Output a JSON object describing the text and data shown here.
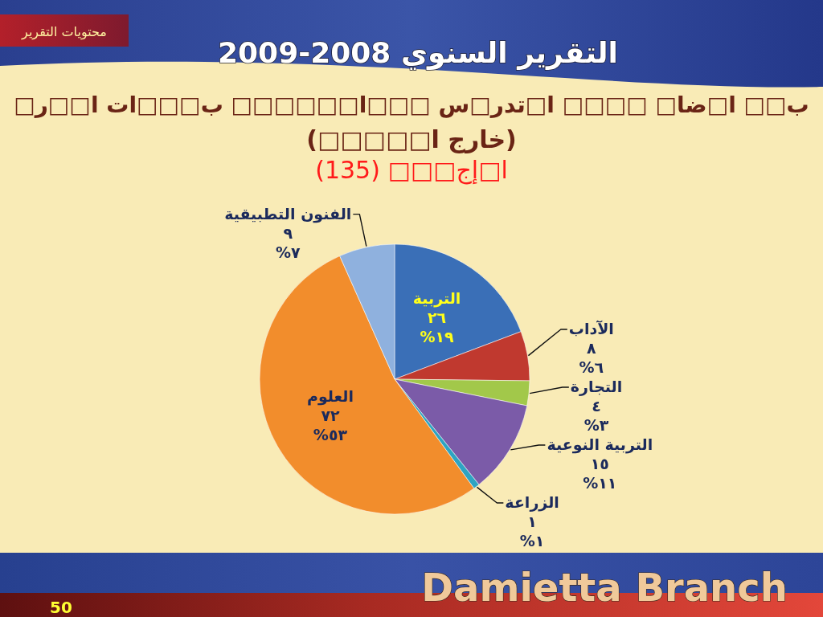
{
  "chart_data": {
    "type": "pie",
    "title": "ب□□ ا□ضا□ □□□□ ا□تدر□س □□□ا□□□□□□ ب□□□ات ا□□ر□\n(خارج ا□□□□□)",
    "subtitle": "ا□إج□□□ (135)",
    "categories": [
      "التربية",
      "الآداب",
      "التجارة",
      "التربية النوعية",
      "الزراعة",
      "العلوم",
      "الفنون التطبيقية"
    ],
    "values": [
      26,
      8,
      4,
      15,
      1,
      72,
      9
    ],
    "colors": [
      "#3a6fb7",
      "#c0392f",
      "#a2c84a",
      "#7b5ba8",
      "#2ea4c2",
      "#f28d2c",
      "#8fb1de"
    ],
    "value_labels": [
      "٢٦\n١٩%",
      "٨\n٦%",
      "٤\n٣%",
      "١٥\n١١%",
      "١\n١%",
      "٧٢\n٥٣%",
      "٩\n٧%"
    ],
    "annotations": [
      "محتويات التقرير",
      "التقرير السنوي 2008-2009",
      "Damietta Branch",
      "50"
    ]
  }
}
